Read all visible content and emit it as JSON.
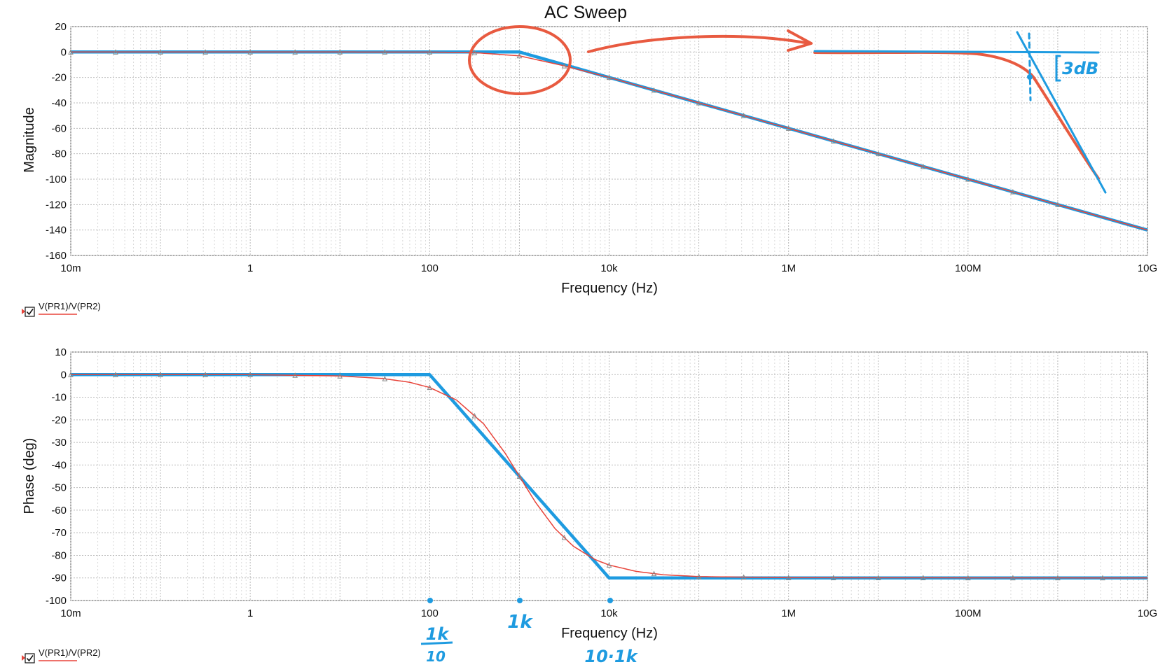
{
  "chart_data": [
    {
      "type": "line",
      "title": "AC Sweep",
      "xlabel": "Frequency (Hz)",
      "ylabel": "Magnitude",
      "x_scale": "log",
      "xlim": [
        0.01,
        10000000000
      ],
      "ylim": [
        -160,
        20
      ],
      "x_ticks": [
        0.01,
        1,
        100,
        10000,
        1000000,
        100000000,
        10000000000
      ],
      "x_tick_labels": [
        "10m",
        "1",
        "100",
        "10k",
        "1M",
        "100M",
        "10G"
      ],
      "y_ticks": [
        20,
        0,
        -20,
        -40,
        -60,
        -80,
        -100,
        -120,
        -140,
        -160
      ],
      "y_tick_labels": [
        "20",
        "0",
        "-20",
        "-40",
        "-60",
        "-80",
        "-100",
        "-120",
        "-140",
        "-160"
      ],
      "grid": true,
      "series": [
        {
          "name": "V(PR1)/V(PR2)",
          "color": "#e8443a",
          "x": [
            0.01,
            1,
            10,
            100,
            300,
            1000,
            3000,
            10000,
            100000,
            1000000,
            10000000,
            100000000,
            1000000000,
            10000000000
          ],
          "y": [
            0,
            0,
            0,
            -0.04,
            -0.4,
            -3.0,
            -10.5,
            -20.0,
            -40.0,
            -60.0,
            -80.0,
            -100.0,
            -120.0,
            -140.0
          ]
        },
        {
          "color": "#1e9be0",
          "x": [
            0.01,
            1000,
            10000000000
          ],
          "y": [
            0,
            0,
            -140
          ]
        }
      ],
      "annotations": [
        {
          "text": "3dB",
          "color": "#1e9be0"
        }
      ]
    },
    {
      "type": "line",
      "title": "",
      "xlabel": "Frequency (Hz)",
      "ylabel": "Phase (deg)",
      "x_scale": "log",
      "xlim": [
        0.01,
        10000000000
      ],
      "ylim": [
        -100,
        10
      ],
      "x_ticks": [
        0.01,
        1,
        100,
        10000,
        1000000,
        100000000,
        10000000000
      ],
      "x_tick_labels": [
        "10m",
        "1",
        "100",
        "10k",
        "1M",
        "100M",
        "10G"
      ],
      "y_ticks": [
        10,
        0,
        -10,
        -20,
        -30,
        -40,
        -50,
        -60,
        -70,
        -80,
        -90,
        -100
      ],
      "y_tick_labels": [
        "10",
        "0",
        "-10",
        "-20",
        "-30",
        "-40",
        "-50",
        "-60",
        "-70",
        "-80",
        "-90",
        "-100"
      ],
      "grid": true,
      "series": [
        {
          "name": "V(PR1)/V(PR2)",
          "color": "#e8443a",
          "x": [
            0.01,
            1,
            10,
            30,
            60,
            100,
            200,
            400,
            700,
            1000,
            1500,
            2500,
            4000,
            7000,
            10000,
            20000,
            40000,
            100000,
            1000000,
            10000000000
          ],
          "y": [
            0,
            0,
            -0.6,
            -1.7,
            -3.4,
            -5.7,
            -11.3,
            -21.8,
            -35.0,
            -45.0,
            -56.3,
            -68.2,
            -76.0,
            -81.9,
            -84.3,
            -87.1,
            -88.6,
            -89.4,
            -89.9,
            -90.0
          ]
        },
        {
          "color": "#1e9be0",
          "x": [
            0.01,
            100,
            10000,
            10000000000
          ],
          "y": [
            0,
            0,
            -90,
            -90
          ]
        }
      ],
      "annotations": [
        {
          "text": "1k",
          "denominator": "10",
          "color": "#1e9be0"
        },
        {
          "text": "1k",
          "color": "#1e9be0"
        },
        {
          "text": "10·1k",
          "color": "#1e9be0"
        }
      ]
    }
  ]
}
